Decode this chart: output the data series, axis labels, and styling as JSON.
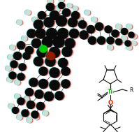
{
  "background_color": "#ffffff",
  "figure_width": 1.99,
  "figure_height": 1.89,
  "dpi": 100,
  "atoms": {
    "carbon": "#0a0a0a",
    "hydrogen": "#c8e0d8",
    "titanium": "#00cc00",
    "oxygen": "#8B2000",
    "bond": "#555555"
  },
  "stereo_red": "#cc1100",
  "stereo_cyan": "#00bbaa",
  "scheme": {
    "Ti_color": "#00cc00",
    "O_color": "#dd2200",
    "line_color": "#111111",
    "label_Ti": "Ti",
    "label_O": "O",
    "label_R": "R"
  }
}
